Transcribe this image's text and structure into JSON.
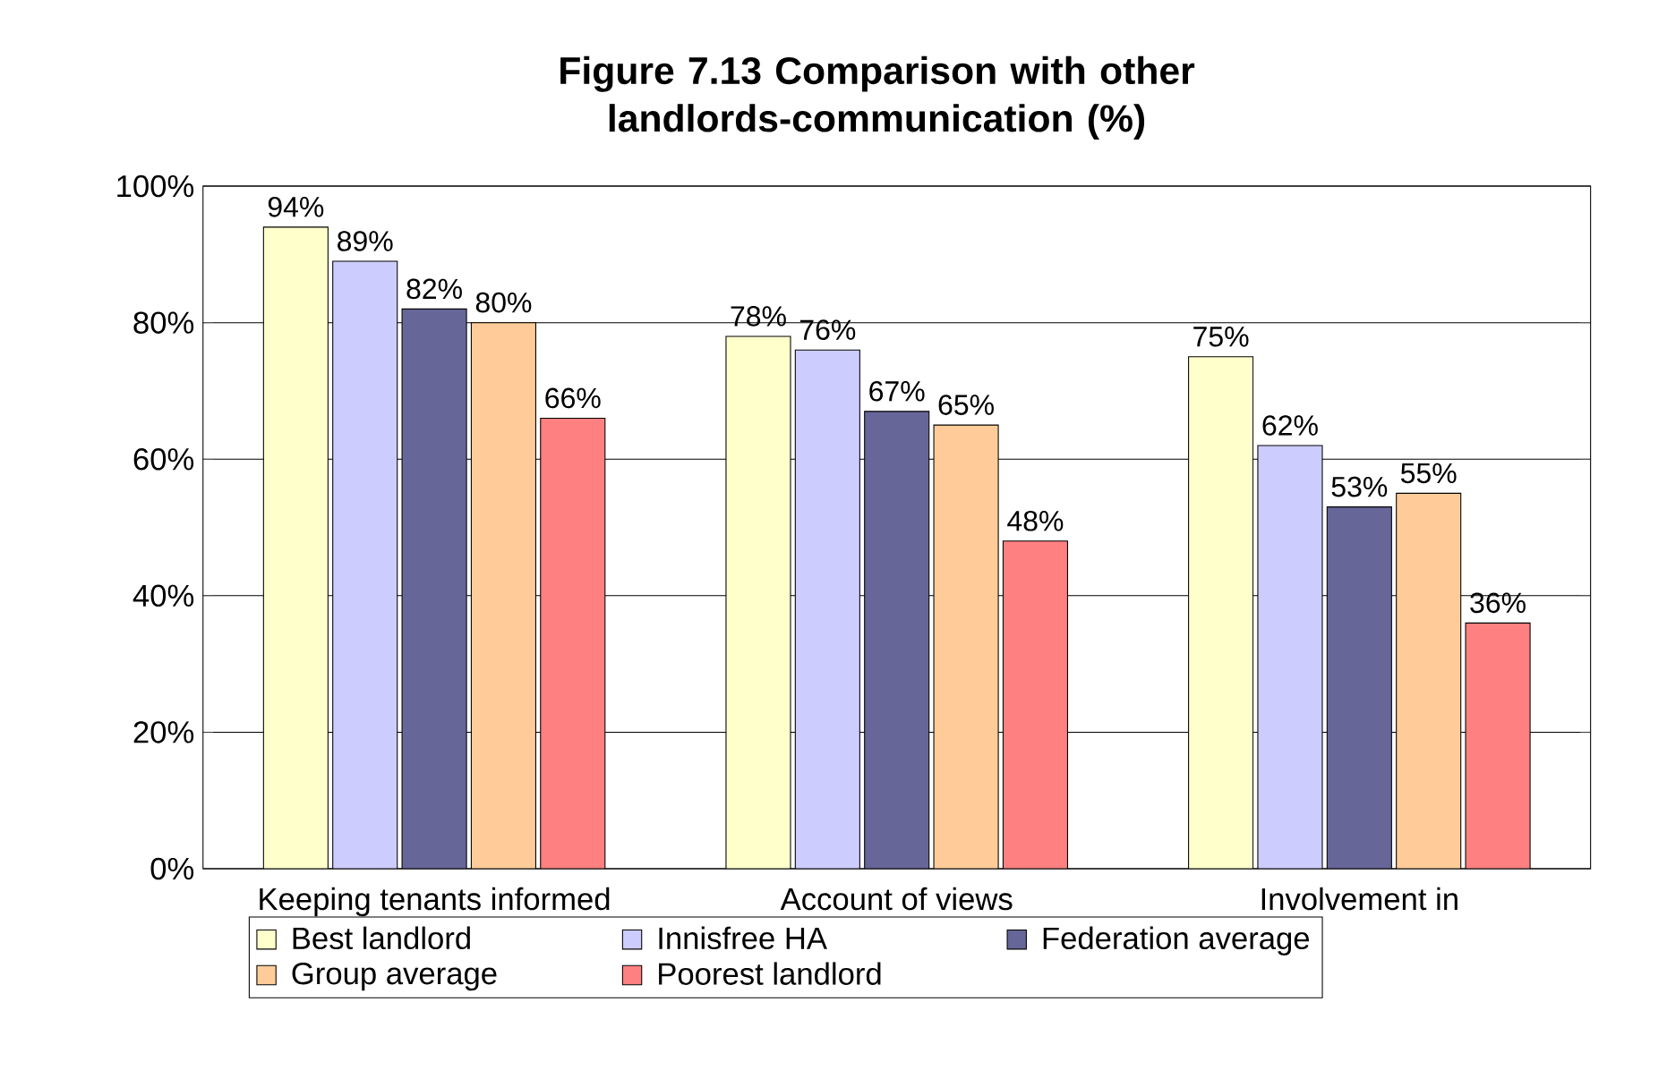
{
  "chart_data": {
    "type": "bar",
    "title": "Figure 7.13 Comparison with other landlords-communication (%)",
    "categories": [
      "Keeping tenants informed",
      "Account of views",
      "Involvement in"
    ],
    "series": [
      {
        "name": "Best landlord",
        "color": "#ffffcc",
        "values": [
          94,
          78,
          75
        ],
        "value_labels": [
          "94%",
          "78%",
          "75%"
        ]
      },
      {
        "name": "Innisfree HA",
        "color": "#ccccff",
        "values": [
          89,
          76,
          62
        ],
        "value_labels": [
          "89%",
          "76%",
          "62%"
        ]
      },
      {
        "name": "Federation average",
        "color": "#666699",
        "values": [
          82,
          67,
          53
        ],
        "value_labels": [
          "82%",
          "67%",
          "53%"
        ]
      },
      {
        "name": "Group average",
        "color": "#ffcc99",
        "values": [
          80,
          65,
          55
        ],
        "value_labels": [
          "80%",
          "65%",
          "55%"
        ]
      },
      {
        "name": "Poorest landlord",
        "color": "#ff8080",
        "values": [
          66,
          48,
          36
        ],
        "value_labels": [
          "66%",
          "48%",
          "36%"
        ]
      }
    ],
    "ylim": [
      0,
      100
    ],
    "yticks": [
      {
        "value": 0,
        "label": "0%"
      },
      {
        "value": 20,
        "label": "20%"
      },
      {
        "value": 40,
        "label": "40%"
      },
      {
        "value": 60,
        "label": "60%"
      },
      {
        "value": 80,
        "label": "80%"
      },
      {
        "value": 100,
        "label": "100%"
      }
    ],
    "grid": "y",
    "legend": "bottom"
  }
}
